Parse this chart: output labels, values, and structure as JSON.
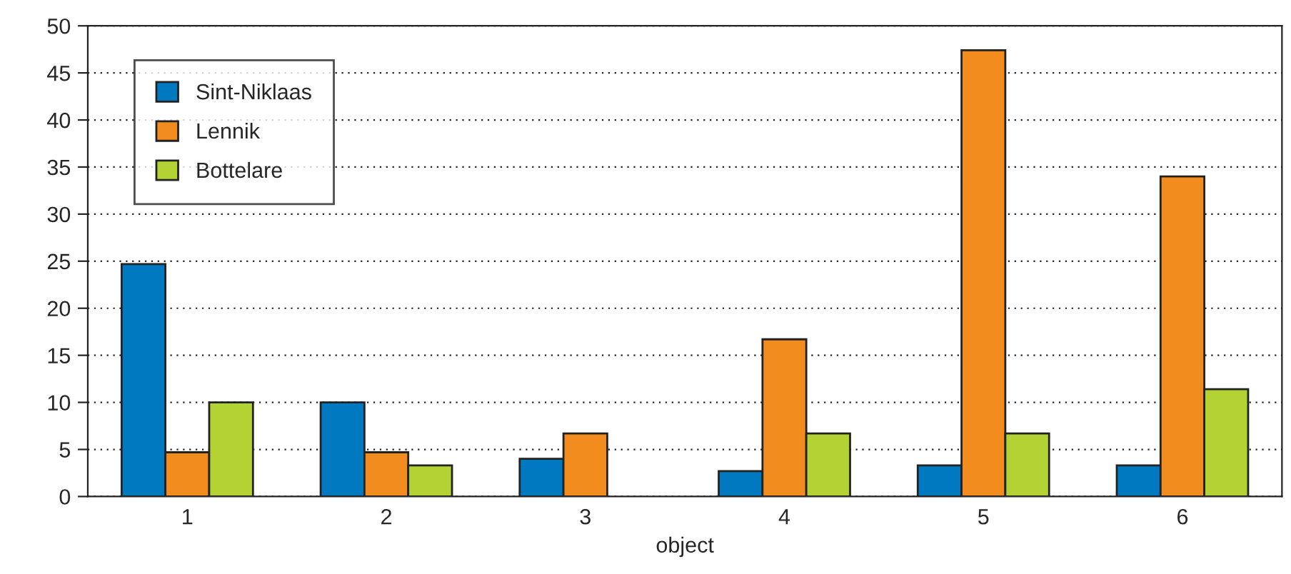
{
  "chart_data": {
    "type": "bar",
    "xlabel": "object",
    "categories": [
      "1",
      "2",
      "3",
      "4",
      "5",
      "6"
    ],
    "series": [
      {
        "name": "Sint-Niklaas",
        "color": "#0079c1",
        "values": [
          24.7,
          10.0,
          4.0,
          2.7,
          3.3,
          3.3
        ]
      },
      {
        "name": "Lennik",
        "color": "#f28c1e",
        "values": [
          4.7,
          4.7,
          6.7,
          16.7,
          47.4,
          34.0
        ]
      },
      {
        "name": "Bottelare",
        "color": "#b3d334",
        "values": [
          10.0,
          3.3,
          null,
          6.7,
          6.7,
          11.4
        ]
      }
    ],
    "ylim": [
      0,
      50
    ],
    "yticks": [
      0,
      5,
      10,
      15,
      20,
      25,
      30,
      35,
      40,
      45,
      50
    ],
    "grid": "y",
    "legend": "top left"
  }
}
